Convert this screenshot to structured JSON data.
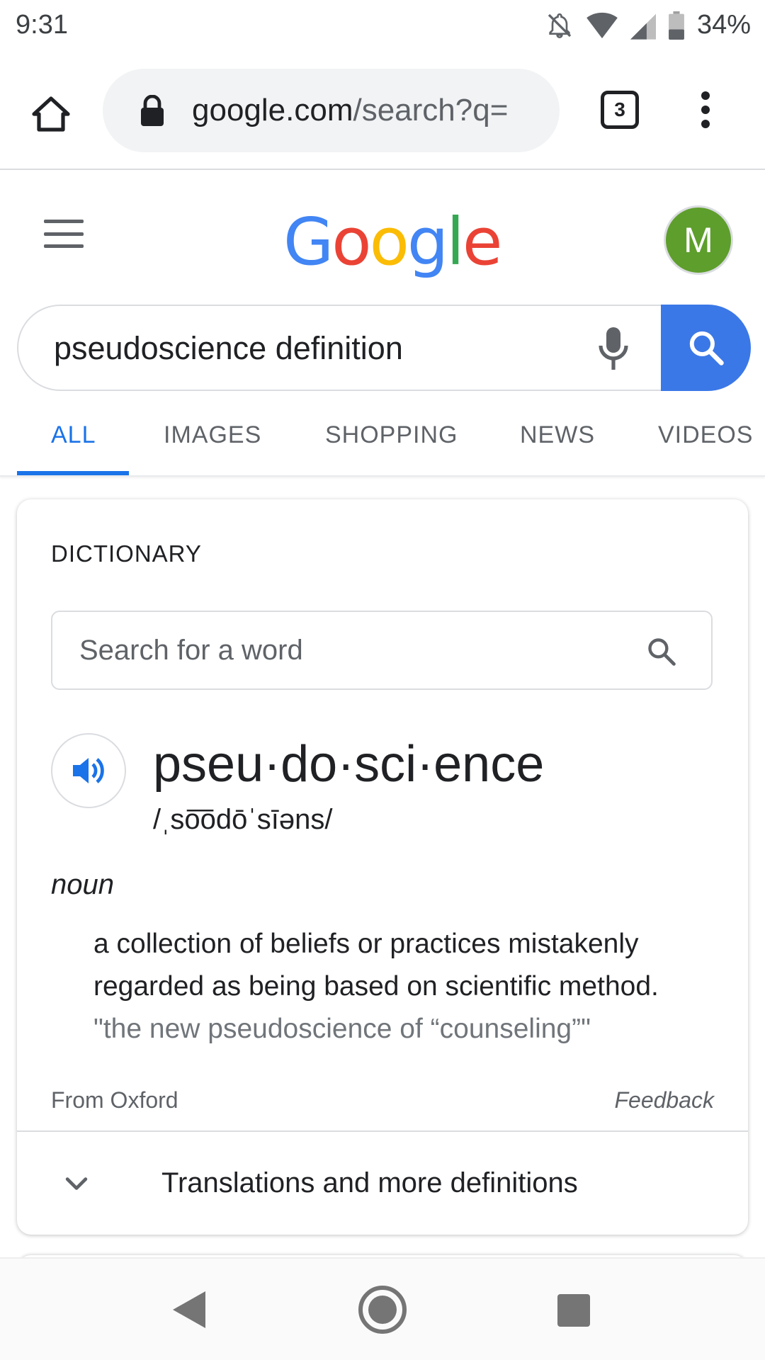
{
  "status_bar": {
    "time": "9:31",
    "battery": "34%",
    "icons": [
      "bell-off-icon",
      "wifi-icon",
      "signal-icon",
      "battery-icon"
    ]
  },
  "browser": {
    "url_domain": "google.com",
    "url_path": "/search?q=",
    "tab_count": "3",
    "icons": [
      "home-icon",
      "lock-icon",
      "tabs-icon",
      "more-vert-icon"
    ]
  },
  "google": {
    "logo_letters": [
      "G",
      "o",
      "o",
      "g",
      "l",
      "e"
    ],
    "avatar_initial": "M",
    "avatar_color": "#5e9e2c",
    "search_query": "pseudoscience definition",
    "accent_color": "#1a73e8"
  },
  "nav_tabs": [
    {
      "label": "ALL",
      "active": true
    },
    {
      "label": "IMAGES",
      "active": false
    },
    {
      "label": "SHOPPING",
      "active": false
    },
    {
      "label": "NEWS",
      "active": false
    },
    {
      "label": "VIDEOS",
      "active": false
    }
  ],
  "dictionary": {
    "label": "DICTIONARY",
    "search_placeholder": "Search for a word",
    "headword": "pseu·do·sci·ence",
    "phonetic": "/ˌso͞odōˈsīəns/",
    "part_of_speech": "noun",
    "definition": "a collection of beliefs or practices mistakenly regarded as being based on scientific method.",
    "example": "\"the new pseudoscience of “counseling”\"",
    "source": "From Oxford",
    "feedback": "Feedback",
    "more_label": "Translations and more definitions"
  }
}
